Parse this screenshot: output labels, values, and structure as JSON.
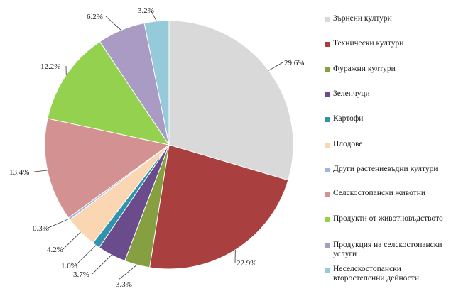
{
  "chart_data": {
    "type": "pie",
    "title": "",
    "start_angle_deg": 0,
    "direction": "clockwise",
    "legend_position": "right",
    "slices": [
      {
        "label": "Зърнени култури",
        "value": 29.6,
        "display": "29.6%",
        "color": "#d9d9d9"
      },
      {
        "label": "Технически култури",
        "value": 22.9,
        "display": "22.9%",
        "color": "#a9403f"
      },
      {
        "label": "Фуражни култури",
        "value": 3.3,
        "display": "3.3%",
        "color": "#86a041"
      },
      {
        "label": "Зеленчуци",
        "value": 3.7,
        "display": "3.7%",
        "color": "#6a4c8d"
      },
      {
        "label": "Картофи",
        "value": 1.0,
        "display": "1.0%",
        "color": "#2f93ae"
      },
      {
        "label": "Плодове",
        "value": 4.2,
        "display": "4.2%",
        "color": "#fbd6b3"
      },
      {
        "label": "Други растениевъдни култури",
        "value": 0.3,
        "display": "0.3%",
        "color": "#9fb6dd"
      },
      {
        "label": "Селскостопански животни",
        "value": 13.4,
        "display": "13.4%",
        "color": "#d39291"
      },
      {
        "label": "Продукти от животновъдството",
        "value": 12.2,
        "display": "12.2%",
        "color": "#93d14f"
      },
      {
        "label": "Продукция на селскостопански услуги",
        "value": 6.2,
        "display": "6.2%",
        "color": "#a99bc4"
      },
      {
        "label": "Неселскостопански второстепенни дейности",
        "value": 3.2,
        "display": "3.2%",
        "color": "#94cad9"
      }
    ]
  }
}
